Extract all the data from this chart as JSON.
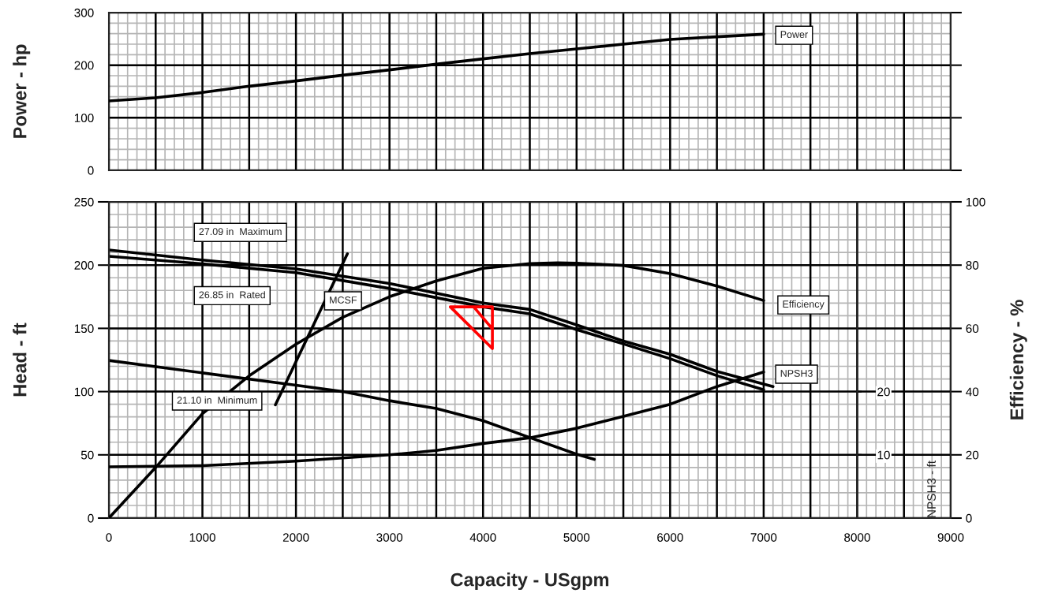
{
  "chart_data": [
    {
      "type": "line",
      "ylabel": "Power - hp",
      "xlim": [
        0,
        9000
      ],
      "xticks": [
        {
          "value": 0,
          "label": null
        },
        {
          "value": 500,
          "label": null
        },
        {
          "value": 1000,
          "label": null
        },
        {
          "value": 1500,
          "label": null
        },
        {
          "value": 2000,
          "label": null
        },
        {
          "value": 2500,
          "label": null
        },
        {
          "value": 3000,
          "label": null
        },
        {
          "value": 3500,
          "label": null
        },
        {
          "value": 4000,
          "label": null
        },
        {
          "value": 4500,
          "label": null
        },
        {
          "value": 5000,
          "label": null
        },
        {
          "value": 5500,
          "label": null
        },
        {
          "value": 6000,
          "label": null
        },
        {
          "value": 6500,
          "label": null
        },
        {
          "value": 7000,
          "label": null
        },
        {
          "value": 7500,
          "label": null
        },
        {
          "value": 8000,
          "label": null
        },
        {
          "value": 8500,
          "label": null
        },
        {
          "value": 9000,
          "label": null
        }
      ],
      "ylim": [
        0,
        300
      ],
      "yticks": [
        0,
        100,
        200,
        300
      ],
      "grid": true,
      "tick_labels": "y",
      "series": [
        {
          "name": "Power",
          "color": "#000000",
          "x": [
            0,
            500,
            1000,
            1500,
            2000,
            2500,
            3000,
            3500,
            4000,
            4500,
            5000,
            5500,
            6000,
            6500,
            7000
          ],
          "values": [
            132,
            138,
            148,
            160,
            170,
            181,
            191,
            202,
            212,
            222,
            231,
            240,
            249,
            254,
            259
          ]
        }
      ]
    },
    {
      "type": "line",
      "xlabel": "Capacity - USgpm",
      "ylabel": "Head - ft",
      "y2label": "Efficiency - %",
      "y3label": "NPSH3 - ft",
      "xlim": [
        0,
        9000
      ],
      "xticks": [
        0,
        {
          "value": 500,
          "label": null
        },
        1000,
        {
          "value": 1500,
          "label": null
        },
        2000,
        {
          "value": 2500,
          "label": null
        },
        3000,
        {
          "value": 3500,
          "label": null
        },
        4000,
        {
          "value": 4500,
          "label": null
        },
        5000,
        {
          "value": 5500,
          "label": null
        },
        6000,
        {
          "value": 6500,
          "label": null
        },
        7000,
        {
          "value": 7500,
          "label": null
        },
        8000,
        {
          "value": 8500,
          "label": null
        },
        9000
      ],
      "ylim": [
        0,
        250
      ],
      "yticks": [
        0,
        50,
        100,
        150,
        200,
        250
      ],
      "y2lim": [
        0,
        100
      ],
      "y2ticks": [
        0,
        20,
        40,
        60,
        80,
        100
      ],
      "y3lim": [
        0,
        50
      ],
      "y3ticks": [
        10,
        20
      ],
      "grid": true,
      "series": [
        {
          "name": "27.09 in  Maximum",
          "color": "#000000",
          "x": [
            0,
            1000,
            2000,
            3000,
            4000,
            4500,
            5000,
            5500,
            6000,
            6500,
            7100
          ],
          "values": [
            212,
            204,
            197,
            185.5,
            170,
            165,
            152.7,
            140,
            129.5,
            116,
            104
          ]
        },
        {
          "name": "26.85 in  Rated",
          "color": "#000000",
          "x": [
            0,
            1000,
            2000,
            3000,
            4000,
            4500,
            5000,
            5500,
            6000,
            6500,
            7000
          ],
          "values": [
            207,
            201,
            194,
            181.5,
            167,
            161.5,
            149,
            137.7,
            126,
            112.6,
            101.5
          ]
        },
        {
          "name": "21.10 in  Minimum",
          "color": "#000000",
          "x": [
            0,
            1000,
            2000,
            2500,
            3000,
            3500,
            4000,
            4500,
            5000,
            5190
          ],
          "values": [
            124.6,
            114.8,
            105,
            100,
            92.8,
            86.6,
            77,
            63.7,
            50.5,
            46.4
          ]
        },
        {
          "name": "MCSF",
          "color": "#000000",
          "x": [
            1780,
            2550
          ],
          "values": [
            89.5,
            209
          ]
        },
        {
          "name": "Efficiency",
          "color": "#000000",
          "axis": "y2",
          "x": [
            0,
            500,
            1000,
            1500,
            2000,
            2500,
            3000,
            3500,
            4000,
            4500,
            4800,
            5000,
            5500,
            6000,
            6500,
            7000
          ],
          "values": [
            0,
            16,
            33,
            45,
            55,
            63.5,
            70,
            75,
            79,
            80.5,
            80.7,
            80.6,
            79.9,
            77.3,
            73.4,
            68.8
          ]
        },
        {
          "name": "NPSH3",
          "color": "#000000",
          "axis": "y3",
          "x": [
            0,
            1000,
            2000,
            3000,
            3500,
            4000,
            4500,
            5000,
            5500,
            6000,
            6500,
            7000
          ],
          "values": [
            8.1,
            8.3,
            9.0,
            10,
            10.7,
            11.8,
            12.7,
            14.2,
            16.1,
            18.0,
            20.8,
            23.1
          ]
        },
        {
          "color": "#ff0000",
          "x": [
            3900,
            4100,
            4100,
            3650,
            4100,
            4100
          ],
          "values": [
            167,
            149.5,
            167,
            167,
            134,
            149.5
          ]
        }
      ]
    }
  ]
}
